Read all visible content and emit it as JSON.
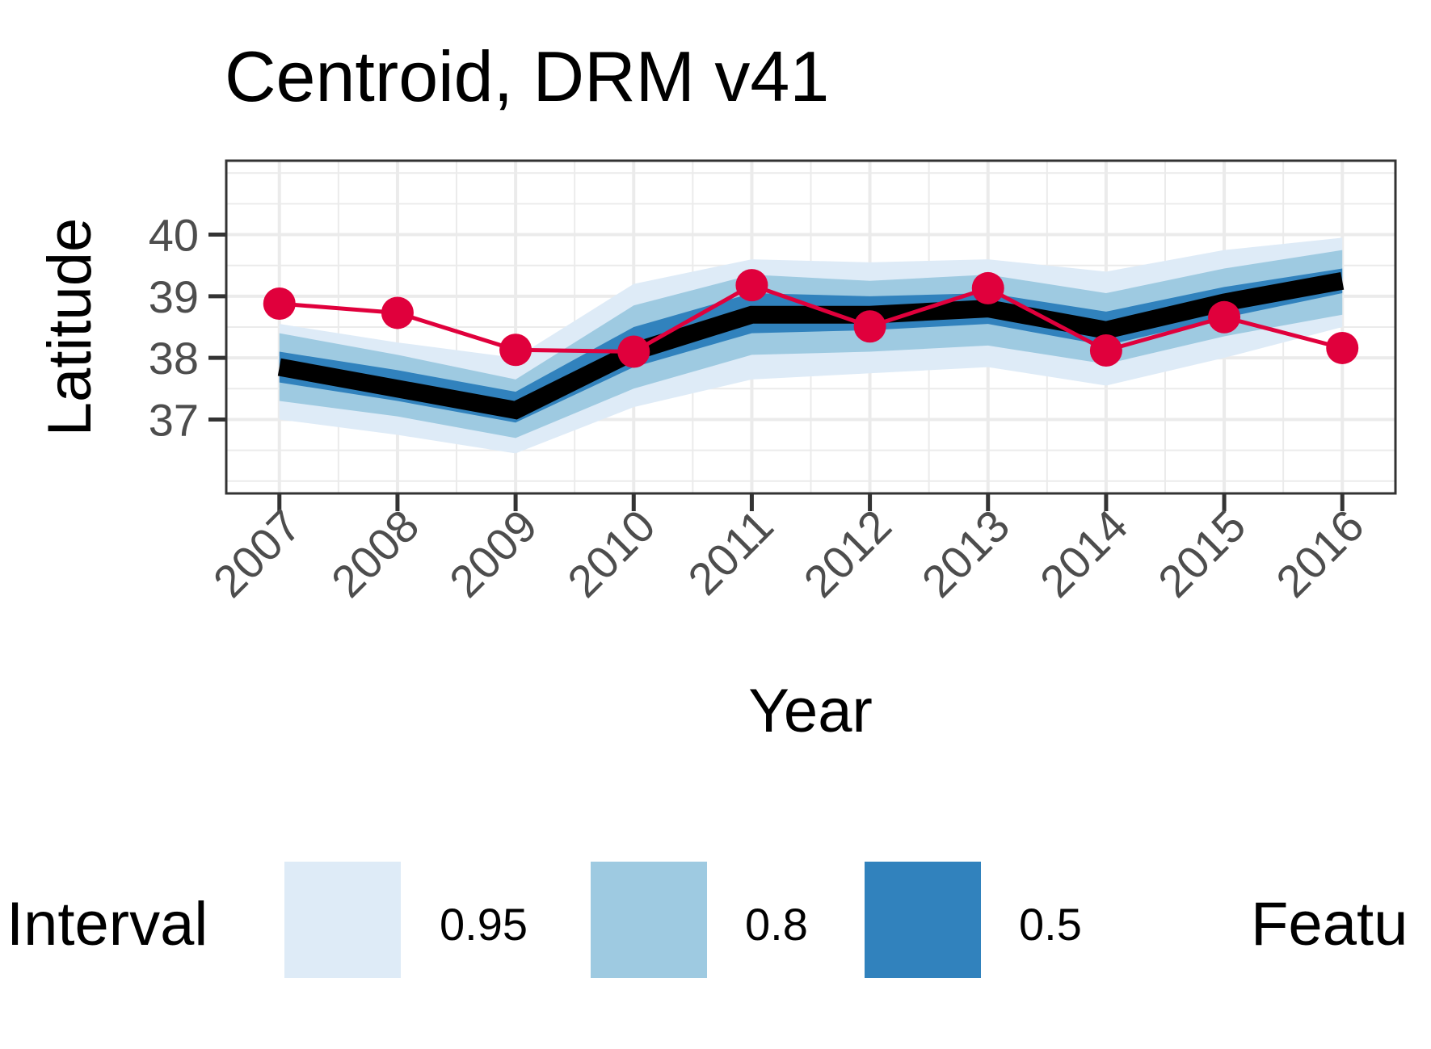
{
  "chart_data": {
    "type": "line",
    "title": "Centroid, DRM v41",
    "xlabel": "Year",
    "ylabel": "Latitude",
    "x": [
      2007,
      2008,
      2009,
      2010,
      2011,
      2012,
      2013,
      2014,
      2015,
      2016
    ],
    "x_tick_labels": [
      "2007",
      "2008",
      "2009",
      "2010",
      "2011",
      "2012",
      "2013",
      "2014",
      "2015",
      "2016"
    ],
    "y_tick_labels": [
      "37",
      "38",
      "39",
      "40"
    ],
    "y_ticks": [
      37,
      38,
      39,
      40
    ],
    "xlim": [
      2006.55,
      2016.45
    ],
    "ylim": [
      35.8,
      41.2
    ],
    "grid": true,
    "legend_position": "bottom",
    "legend": {
      "interval_title": "Interval",
      "interval_entries": [
        {
          "label": "0.95",
          "color": "#deebf7"
        },
        {
          "label": "0.8",
          "color": "#9ecae1"
        },
        {
          "label": "0.5",
          "color": "#3182bd"
        }
      ],
      "feature_title_visible": "Featu"
    },
    "series": [
      {
        "role": "median",
        "color": "#000000",
        "values": [
          37.85,
          37.5,
          37.15,
          38.1,
          38.7,
          38.7,
          38.8,
          38.45,
          38.9,
          39.25
        ]
      },
      {
        "role": "observed",
        "color": "#e0003c",
        "values": [
          38.88,
          38.73,
          38.13,
          38.1,
          39.18,
          38.51,
          39.13,
          38.12,
          38.66,
          38.16
        ]
      }
    ],
    "intervals": [
      {
        "level": "0.95",
        "color": "#deebf7",
        "lower": [
          37.0,
          36.75,
          36.45,
          37.2,
          37.65,
          37.75,
          37.85,
          37.55,
          38.0,
          38.5
        ],
        "upper": [
          38.55,
          38.25,
          38.0,
          39.2,
          39.6,
          39.55,
          39.6,
          39.4,
          39.75,
          39.95
        ]
      },
      {
        "level": "0.8",
        "color": "#9ecae1",
        "lower": [
          37.3,
          37.05,
          36.7,
          37.5,
          38.05,
          38.1,
          38.2,
          37.9,
          38.35,
          38.7
        ],
        "upper": [
          38.4,
          38.05,
          37.65,
          38.85,
          39.35,
          39.25,
          39.35,
          39.05,
          39.45,
          39.75
        ]
      },
      {
        "level": "0.5",
        "color": "#3182bd",
        "lower": [
          37.6,
          37.3,
          36.95,
          37.85,
          38.4,
          38.45,
          38.55,
          38.2,
          38.65,
          39.05
        ],
        "upper": [
          38.1,
          37.8,
          37.45,
          38.5,
          39.05,
          39.0,
          39.05,
          38.75,
          39.15,
          39.45
        ]
      }
    ]
  }
}
